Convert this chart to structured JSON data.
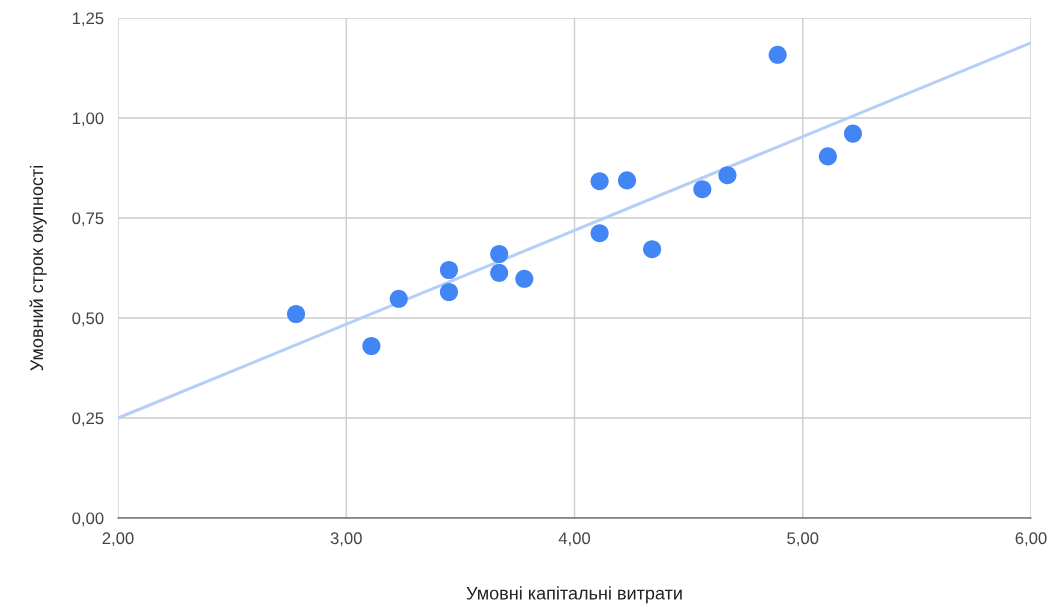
{
  "chart_data": {
    "type": "scatter",
    "xlabel": "Умовні капітальні витрати",
    "ylabel": "Умовний строк окупності",
    "grid": true,
    "legend": false,
    "xlim": [
      2,
      6
    ],
    "ylim": [
      0,
      1.25
    ],
    "xticks": [
      {
        "value": 2,
        "label": "2,00"
      },
      {
        "value": 3,
        "label": "3,00"
      },
      {
        "value": 4,
        "label": "4,00"
      },
      {
        "value": 5,
        "label": "5,00"
      },
      {
        "value": 6,
        "label": "6,00"
      }
    ],
    "yticks": [
      {
        "value": 0,
        "label": "0,00"
      },
      {
        "value": 0.25,
        "label": "0,25"
      },
      {
        "value": 0.5,
        "label": "0,50"
      },
      {
        "value": 0.75,
        "label": "0,75"
      },
      {
        "value": 1,
        "label": "1,00"
      },
      {
        "value": 1.25,
        "label": "1,25"
      }
    ],
    "series": [
      {
        "type": "line",
        "color": "#b7cff7",
        "x": [
          2,
          6
        ],
        "values": [
          0.25,
          1.188
        ]
      },
      {
        "marker": "circle",
        "color": "#4285f4",
        "x": [
          2.78,
          3.11,
          3.23,
          3.45,
          3.45,
          3.67,
          3.67,
          3.78,
          4.11,
          4.11,
          4.23,
          4.34,
          4.56,
          4.67,
          4.89,
          5.11,
          5.22
        ],
        "values": [
          0.51,
          0.43,
          0.548,
          0.62,
          0.565,
          0.66,
          0.613,
          0.598,
          0.842,
          0.712,
          0.844,
          0.672,
          0.822,
          0.857,
          1.158,
          0.904,
          0.961
        ]
      }
    ]
  }
}
